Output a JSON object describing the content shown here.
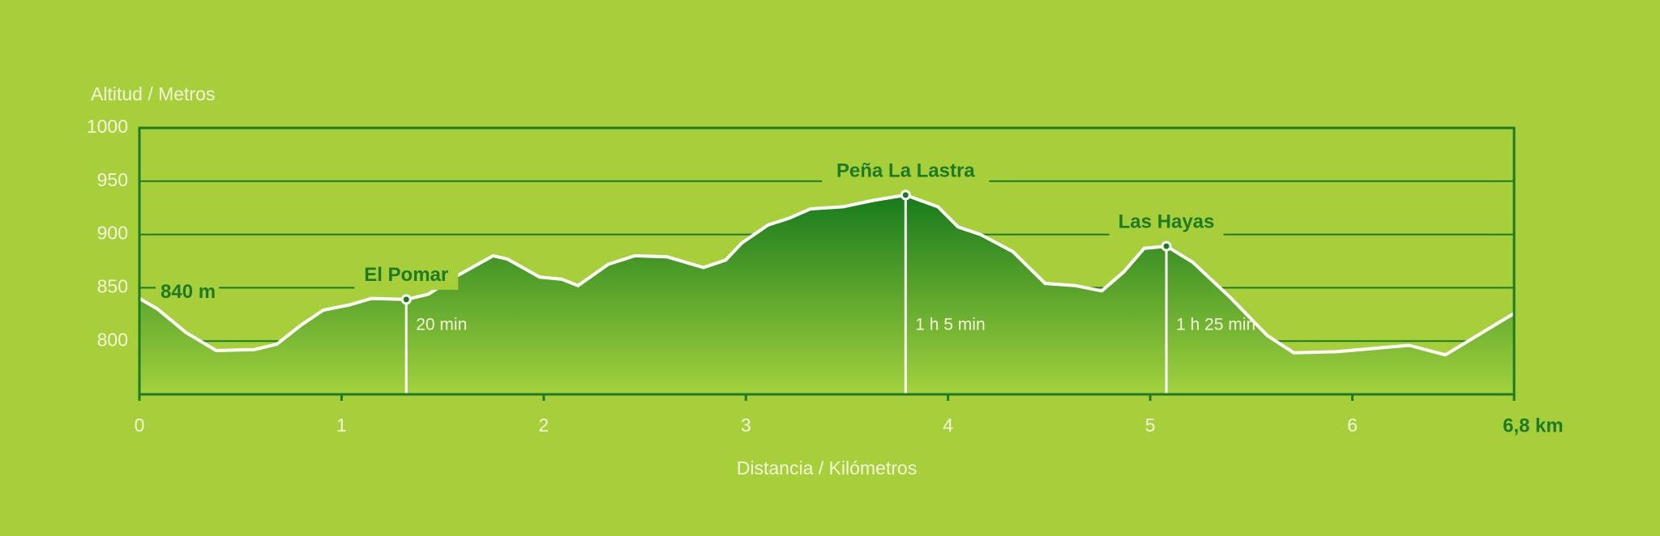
{
  "chart_data": {
    "type": "area",
    "y_label": "Altitud / Metros",
    "x_label": "Distancia / Kilómetros",
    "start_label": "840 m",
    "x": [
      0,
      0.09,
      0.23,
      0.38,
      0.57,
      0.68,
      0.8,
      0.91,
      1.04,
      1.15,
      1.32,
      1.43,
      1.56,
      1.75,
      1.82,
      1.98,
      2.09,
      2.17,
      2.32,
      2.45,
      2.61,
      2.79,
      2.9,
      2.98,
      3.11,
      3.21,
      3.32,
      3.48,
      3.63,
      3.79,
      3.95,
      4.05,
      4.16,
      4.32,
      4.48,
      4.63,
      4.76,
      4.87,
      4.97,
      5.08,
      5.21,
      5.39,
      5.58,
      5.71,
      5.92,
      6.28,
      6.46,
      6.8
    ],
    "values": [
      840,
      830,
      808,
      791,
      792,
      797,
      815,
      829,
      834,
      840,
      839,
      844,
      860,
      880,
      877,
      860,
      858,
      852,
      872,
      880,
      879,
      869,
      876,
      892,
      909,
      915,
      924,
      926,
      932,
      937,
      926,
      907,
      900,
      884,
      854,
      852,
      847,
      865,
      887,
      889,
      874,
      842,
      805,
      789,
      790,
      796,
      787,
      826
    ],
    "line_color": "#ffffff",
    "fill_top_color": "#177a1c",
    "fill_bottom_color": "#a3d23e",
    "frame_color": "#1f7a26",
    "xlim": [
      0,
      6.8
    ],
    "ylim": [
      750,
      1000
    ],
    "xticks": [
      0,
      1,
      2,
      3,
      4,
      5,
      6,
      {
        "value": 6.8,
        "label": "6,8 km"
      }
    ],
    "yticks": [
      800,
      850,
      900,
      950,
      1000
    ],
    "grid": true,
    "waypoints": [
      {
        "name": "El Pomar",
        "x": 1.32,
        "y": 839,
        "time": "20 min"
      },
      {
        "name": "Peña La Lastra",
        "x": 3.79,
        "y": 937,
        "time": "1 h 5 min"
      },
      {
        "name": "Las Hayas",
        "x": 5.08,
        "y": 889,
        "time": "1 h 25 min"
      }
    ]
  }
}
